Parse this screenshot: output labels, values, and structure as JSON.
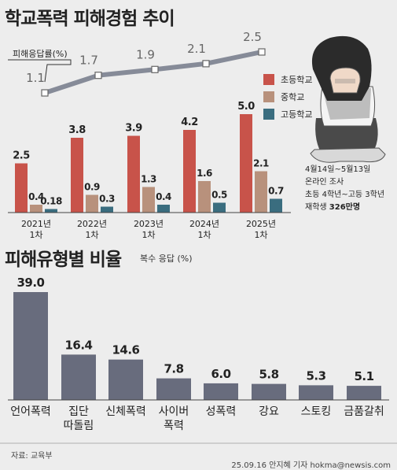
{
  "title": "학교폭력 피해경험 추이",
  "title2": "피해유형별 비율",
  "subtitle2": "복수 응답 (%)",
  "source": "자료: 교육부",
  "credit": "25.09.16 안지혜 기자 hokma@newsis.com",
  "info": {
    "line1": "4월14일~5월13일",
    "line2": "온라인 조사",
    "line3": "초등 4학년~고등 3학년",
    "line4_prefix": "재학생 ",
    "line4_bold": "326만명"
  },
  "colors": {
    "elementary": "#c8534a",
    "middle": "#b8917c",
    "high": "#3a6d7f",
    "type_bar": "#686c7d",
    "rate_line": "#868b98"
  },
  "chart_data": [
    {
      "type": "line",
      "label": "피해응답률(%)",
      "categories": [
        "2021년 1차",
        "2022년 1차",
        "2023년 1차",
        "2024년 1차",
        "2025년 1차"
      ],
      "values": [
        1.1,
        1.7,
        1.9,
        2.1,
        2.5
      ]
    },
    {
      "type": "bar",
      "categories": [
        "2021년 1차",
        "2022년 1차",
        "2023년 1차",
        "2024년 1차",
        "2025년 1차"
      ],
      "category_lines": [
        [
          "2021년",
          "1차"
        ],
        [
          "2022년",
          "1차"
        ],
        [
          "2023년",
          "1차"
        ],
        [
          "2024년",
          "1차"
        ],
        [
          "2025년",
          "1차"
        ]
      ],
      "series": [
        {
          "name": "초등학교",
          "values": [
            2.5,
            3.8,
            3.9,
            4.2,
            5.0
          ],
          "labels": [
            "2.5",
            "3.8",
            "3.9",
            "4.2",
            "5.0"
          ]
        },
        {
          "name": "중학교",
          "values": [
            0.4,
            0.9,
            1.3,
            1.6,
            2.1
          ],
          "labels": [
            "0.4",
            "0.9",
            "1.3",
            "1.6",
            "2.1"
          ]
        },
        {
          "name": "고등학교",
          "values": [
            0.18,
            0.3,
            0.4,
            0.5,
            0.7
          ],
          "labels": [
            "0.18",
            "0.3",
            "0.4",
            "0.5",
            "0.7"
          ]
        }
      ]
    },
    {
      "type": "bar",
      "categories": [
        "언어폭력",
        "집단 따돌림",
        "신체폭력",
        "사이버 폭력",
        "성폭력",
        "강요",
        "스토킹",
        "금품갈취"
      ],
      "category_lines": [
        [
          "언어폭력"
        ],
        [
          "집단",
          "따돌림"
        ],
        [
          "신체폭력"
        ],
        [
          "사이버",
          "폭력"
        ],
        [
          "성폭력"
        ],
        [
          "강요"
        ],
        [
          "스토킹"
        ],
        [
          "금품갈취"
        ]
      ],
      "values": [
        39.0,
        16.4,
        14.6,
        7.8,
        6.0,
        5.8,
        5.3,
        5.1
      ],
      "labels": [
        "39.0",
        "16.4",
        "14.6",
        "7.8",
        "6.0",
        "5.8",
        "5.3",
        "5.1"
      ]
    }
  ]
}
